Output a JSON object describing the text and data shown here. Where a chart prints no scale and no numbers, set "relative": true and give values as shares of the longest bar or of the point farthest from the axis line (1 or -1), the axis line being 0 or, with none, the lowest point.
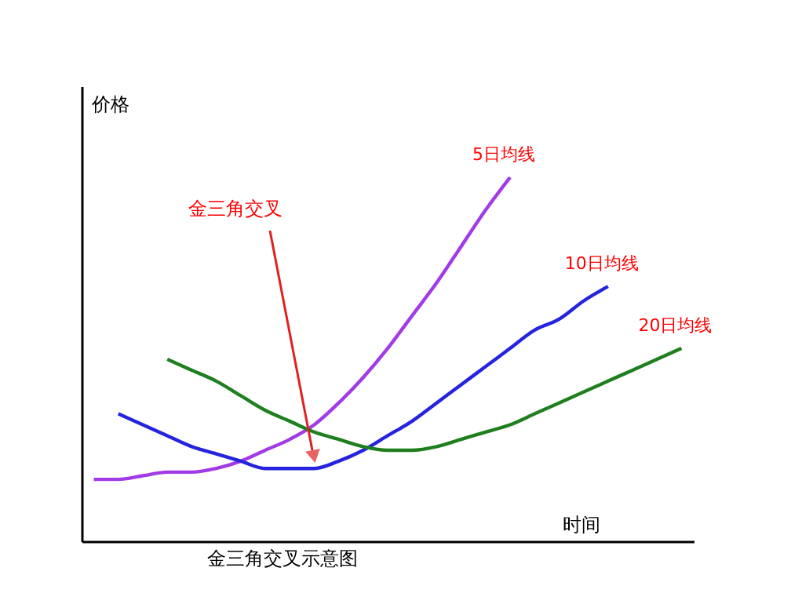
{
  "chart_data": {
    "type": "line",
    "relative": true,
    "title": "金三角交叉示意图",
    "xlabel": "时间",
    "ylabel": "价格",
    "annotations": [
      "金三角交叉"
    ],
    "legend": false,
    "categories": [
      null,
      null,
      null,
      null,
      null,
      null,
      null,
      null,
      null,
      null,
      null,
      null,
      null,
      null,
      null,
      null,
      null,
      null,
      null,
      null,
      null,
      null,
      null,
      null,
      null
    ],
    "series": [
      {
        "name": "5日均线",
        "color": "#a23be6",
        "values": [
          0.17,
          0.17,
          0.18,
          0.19,
          0.19,
          0.2,
          0.22,
          0.25,
          0.28,
          0.32,
          0.38,
          0.45,
          0.53,
          0.62,
          0.71,
          0.81,
          0.91,
          1,
          null,
          null,
          null,
          null,
          null,
          null,
          null
        ]
      },
      {
        "name": "10日均线",
        "color": "#2424e0",
        "values": [
          null,
          0.35,
          0.32,
          0.29,
          0.26,
          0.24,
          0.22,
          0.2,
          0.2,
          0.2,
          0.22,
          0.25,
          0.29,
          0.33,
          0.38,
          0.43,
          0.48,
          0.53,
          0.58,
          0.61,
          0.66,
          0.7,
          null,
          null,
          null
        ]
      },
      {
        "name": "20日均线",
        "color": "#1f7f1f",
        "values": [
          null,
          null,
          null,
          0.5,
          0.47,
          0.44,
          0.4,
          0.36,
          0.33,
          0.3,
          0.28,
          0.26,
          0.25,
          0.25,
          0.26,
          0.28,
          0.3,
          0.32,
          0.35,
          0.38,
          0.41,
          0.44,
          0.47,
          0.5,
          0.53
        ]
      }
    ]
  }
}
